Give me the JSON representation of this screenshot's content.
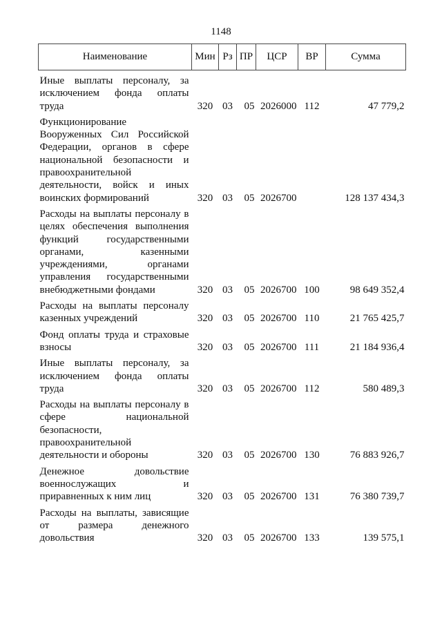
{
  "page_number": "1148",
  "headers": [
    "Наименование",
    "Мин",
    "Рз",
    "ПР",
    "ЦСР",
    "ВР",
    "Сумма"
  ],
  "rows": [
    {
      "name": "Иные выплаты персоналу, за исключением фонда оплаты труда",
      "min": "320",
      "rz": "03",
      "pr": "05",
      "csr": "2026000",
      "vr": "112",
      "sum": "47 779,2"
    },
    {
      "name": "Функционирование Вооруженных Сил Российской Федерации, органов в сфере национальной безопасности и правоохранительной деятельности, войск и иных воинских формирований",
      "min": "320",
      "rz": "03",
      "pr": "05",
      "csr": "2026700",
      "vr": "",
      "sum": "128 137 434,3"
    },
    {
      "name": "Расходы на выплаты персоналу в целях обеспечения выполнения функций государственными органами, казенными учреждениями, органами управления государственными внебюджетными фондами",
      "min": "320",
      "rz": "03",
      "pr": "05",
      "csr": "2026700",
      "vr": "100",
      "sum": "98 649 352,4"
    },
    {
      "name": "Расходы на выплаты персоналу казенных учреждений",
      "min": "320",
      "rz": "03",
      "pr": "05",
      "csr": "2026700",
      "vr": "110",
      "sum": "21 765 425,7"
    },
    {
      "name": "Фонд оплаты труда и страховые взносы",
      "min": "320",
      "rz": "03",
      "pr": "05",
      "csr": "2026700",
      "vr": "111",
      "sum": "21 184 936,4"
    },
    {
      "name": "Иные выплаты персоналу, за исключением фонда оплаты труда",
      "min": "320",
      "rz": "03",
      "pr": "05",
      "csr": "2026700",
      "vr": "112",
      "sum": "580 489,3"
    },
    {
      "name": "Расходы на выплаты персоналу в сфере национальной безопасности, правоохранительной деятельности и обороны",
      "min": "320",
      "rz": "03",
      "pr": "05",
      "csr": "2026700",
      "vr": "130",
      "sum": "76 883 926,7"
    },
    {
      "name": "Денежное довольствие военнослужащих и приравненных к ним лиц",
      "min": "320",
      "rz": "03",
      "pr": "05",
      "csr": "2026700",
      "vr": "131",
      "sum": "76 380 739,7"
    },
    {
      "name": "Расходы на выплаты, зависящие от размера денежного довольствия",
      "min": "320",
      "rz": "03",
      "pr": "05",
      "csr": "2026700",
      "vr": "133",
      "sum": "139 575,1"
    }
  ]
}
